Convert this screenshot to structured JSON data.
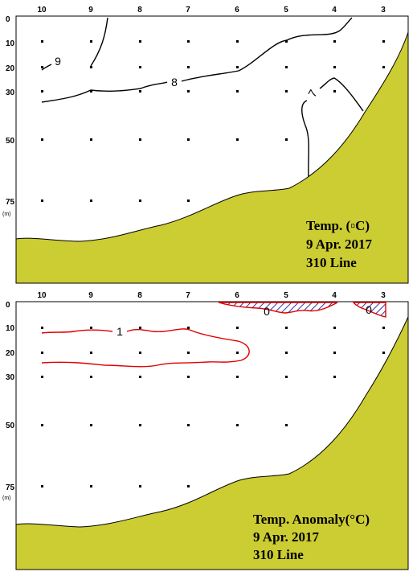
{
  "panels": [
    {
      "id": "temperature",
      "stations": [
        "10",
        "9",
        "8",
        "7",
        "6",
        "5",
        "4",
        "3"
      ],
      "depths": [
        "0",
        "10",
        "20",
        "30",
        "50",
        "75"
      ],
      "depth_unit": "(m)",
      "contour_labels": [
        "9",
        "8",
        "7"
      ],
      "caption": [
        "Temp. (▫C)",
        "9 Apr. 2017",
        "310 Line"
      ],
      "colors": {
        "seabed": "#cccc33",
        "contour": "#000000"
      }
    },
    {
      "id": "anomaly",
      "stations": [
        "10",
        "9",
        "8",
        "7",
        "6",
        "5",
        "4",
        "3"
      ],
      "depths": [
        "0",
        "10",
        "20",
        "30",
        "50",
        "75"
      ],
      "depth_unit": "(m)",
      "contour_labels": [
        "1",
        "0",
        "0"
      ],
      "caption": [
        "Temp. Anomaly(°C)",
        "9 Apr. 2017",
        "310 Line"
      ],
      "colors": {
        "seabed": "#cccc33",
        "contour": "#e00000",
        "negative_hatch": "#3333aa"
      }
    }
  ]
}
